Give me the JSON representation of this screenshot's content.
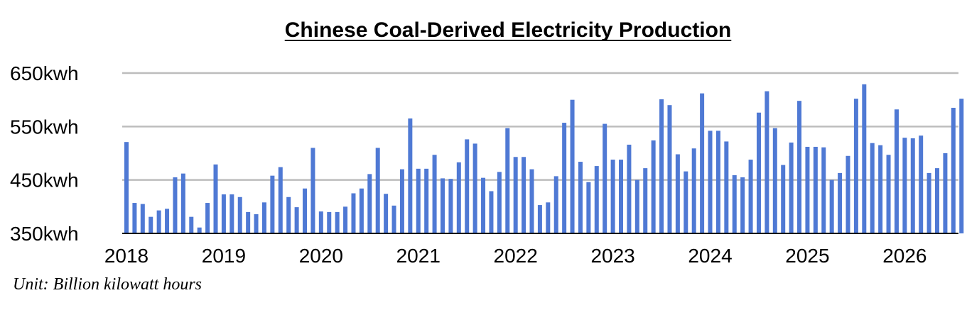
{
  "chart_data": {
    "type": "bar",
    "title": "Chinese Coal-Derived Electricity Production",
    "xlabel": "",
    "ylabel": "",
    "unit_note": "Unit: Billion kilowatt hours",
    "ylim": [
      350,
      650
    ],
    "y_ticks": [
      {
        "value": 350,
        "label": "350kwh"
      },
      {
        "value": 450,
        "label": "450kwh"
      },
      {
        "value": 550,
        "label": "550kwh"
      },
      {
        "value": 650,
        "label": "650kwh"
      }
    ],
    "x_tick_labels": [
      "2018",
      "2019",
      "2020",
      "2021",
      "2022",
      "2023",
      "2024",
      "2025",
      "2026"
    ],
    "months_per_year": 12,
    "grid": true,
    "legend": "none",
    "colors": {
      "bar": "#4f79d4",
      "grid": "#bdbdbd",
      "axis": "#000000"
    },
    "values": [
      521,
      407,
      405,
      381,
      393,
      396,
      455,
      462,
      381,
      361,
      407,
      479,
      423,
      423,
      418,
      390,
      386,
      408,
      458,
      474,
      418,
      399,
      434,
      510,
      391,
      390,
      390,
      400,
      425,
      434,
      461,
      510,
      424,
      402,
      470,
      565,
      471,
      471,
      497,
      453,
      452,
      483,
      526,
      518,
      454,
      429,
      465,
      547,
      493,
      493,
      470,
      403,
      408,
      457,
      557,
      600,
      484,
      446,
      476,
      555,
      488,
      488,
      516,
      450,
      472,
      524,
      601,
      590,
      498,
      466,
      509,
      612,
      542,
      542,
      522,
      459,
      455,
      488,
      576,
      616,
      547,
      478,
      520,
      598,
      512,
      512,
      511,
      450,
      463,
      495,
      602,
      629,
      519,
      515,
      497,
      582,
      529,
      528,
      533,
      463,
      472,
      500,
      585,
      602
    ]
  }
}
